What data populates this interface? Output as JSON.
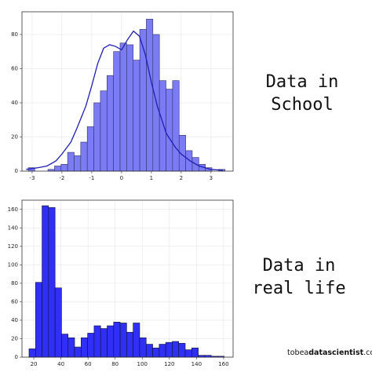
{
  "chart_data": [
    {
      "type": "histogram",
      "color": "#7b7bf3",
      "edgecolor": "#333366",
      "grid": true,
      "bins": [
        -3.13,
        -2.91,
        -2.69,
        -2.47,
        -2.25,
        -2.03,
        -1.81,
        -1.59,
        -1.37,
        -1.15,
        -0.93,
        -0.71,
        -0.49,
        -0.27,
        -0.05,
        0.17,
        0.39,
        0.61,
        0.83,
        1.05,
        1.27,
        1.49,
        1.71,
        1.93,
        2.15,
        2.37,
        2.59,
        2.81,
        3.03,
        3.25,
        3.47
      ],
      "values": [
        2,
        0,
        0,
        1,
        3,
        4,
        11,
        9,
        17,
        26,
        40,
        47,
        56,
        70,
        75,
        74,
        65,
        83,
        89,
        80,
        53,
        48,
        53,
        21,
        12,
        8,
        4,
        2,
        0,
        1
      ],
      "line": {
        "color": "#1f1fb4",
        "x": [
          -3.2,
          -2.8,
          -2.5,
          -2.2,
          -2,
          -1.7,
          -1.5,
          -1.2,
          -1,
          -0.8,
          -0.6,
          -0.4,
          -0.2,
          0,
          0.2,
          0.4,
          0.6,
          0.8,
          1,
          1.2,
          1.5,
          1.8,
          2,
          2.3,
          2.6,
          3,
          3.4
        ],
        "y": [
          1,
          2,
          3,
          6,
          10,
          17,
          25,
          38,
          50,
          63,
          72,
          74,
          73,
          71,
          77,
          82,
          79,
          68,
          52,
          38,
          22,
          14,
          10,
          6,
          3,
          1,
          0.5
        ]
      },
      "xlim": [
        -3.34,
        3.74
      ],
      "xticks": [
        -3,
        -2,
        -1,
        0,
        1,
        2,
        3
      ],
      "ylim": [
        0,
        93.3
      ],
      "yticks": [
        0,
        20,
        40,
        60,
        80
      ]
    },
    {
      "type": "histogram",
      "color": "#2f2ff5",
      "edgecolor": "#111133",
      "grid": true,
      "bins": [
        16.5,
        21.3,
        26.1,
        30.9,
        35.7,
        40.5,
        45.3,
        50.1,
        54.9,
        59.7,
        64.5,
        69.3,
        74.1,
        78.9,
        83.7,
        88.5,
        93.3,
        98.1,
        102.9,
        107.7,
        112.5,
        117.3,
        122.1,
        126.9,
        131.7,
        136.5,
        141.3,
        146.1,
        150.9,
        155.7,
        160.5
      ],
      "values": [
        9,
        81,
        164,
        162,
        75,
        25,
        21,
        11,
        21,
        26,
        34,
        31,
        34,
        38,
        37,
        27,
        37,
        21,
        14,
        10,
        14,
        16,
        17,
        15,
        8,
        10,
        2,
        2,
        1,
        1
      ],
      "xlim": [
        11.3,
        167
      ],
      "xticks": [
        20,
        40,
        60,
        80,
        100,
        120,
        140,
        160
      ],
      "ylim": [
        0,
        170
      ],
      "yticks": [
        0,
        20,
        40,
        60,
        80,
        100,
        120,
        140,
        160
      ]
    }
  ],
  "captions": [
    [
      "Data in",
      "School"
    ],
    [
      "Data in",
      "real life"
    ]
  ],
  "watermark": [
    "tobea",
    "datascientist",
    ".com"
  ]
}
